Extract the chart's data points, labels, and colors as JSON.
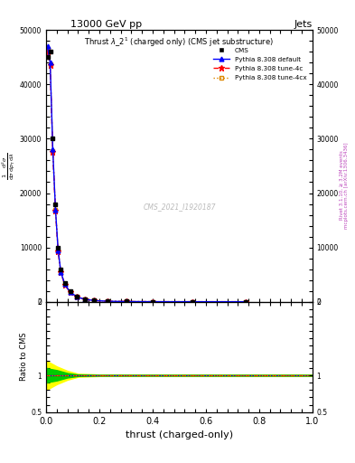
{
  "title_top": "13000 GeV pp",
  "title_right": "Jets",
  "plot_title": "Thrust $\\lambda\\_2^1$ (charged only) (CMS jet substructure)",
  "xlabel": "thrust (charged-only)",
  "watermark": "CMS_2021_I1920187",
  "right_label": "mcplots.cern.ch [arXiv:1306.3436]",
  "right_label2": "Rivet 3.1.10, ≥ 3.2M events",
  "xlim": [
    0.0,
    1.0
  ],
  "ylim_main": [
    0,
    50000
  ],
  "ylim_ratio": [
    0.5,
    2.0
  ],
  "cms_color": "#000000",
  "pythia_default_color": "#0000ff",
  "pythia_4c_color": "#ff0000",
  "pythia_4cx_color": "#dd8800",
  "green_band_color": "#00cc00",
  "yellow_band_color": "#ffff00",
  "thrust_x": [
    0.005,
    0.015,
    0.025,
    0.035,
    0.045,
    0.055,
    0.07,
    0.09,
    0.115,
    0.145,
    0.18,
    0.23,
    0.3,
    0.4,
    0.55,
    0.75
  ],
  "cms_y": [
    45000,
    46000,
    30000,
    18000,
    10000,
    6000,
    3500,
    2000,
    1000,
    500,
    250,
    100,
    40,
    10,
    2,
    0.5
  ],
  "pythia_default_y": [
    47000,
    44000,
    28000,
    17000,
    9500,
    5500,
    3200,
    1800,
    900,
    450,
    220,
    90,
    35,
    9,
    1.8,
    0.4
  ],
  "pythia_4c_y": [
    46000,
    43500,
    27500,
    16800,
    9300,
    5400,
    3100,
    1750,
    880,
    440,
    215,
    88,
    34,
    8.5,
    1.7,
    0.4
  ],
  "pythia_4cx_y": [
    46500,
    43800,
    27800,
    16900,
    9350,
    5450,
    3120,
    1760,
    885,
    442,
    217,
    89,
    34.5,
    8.7,
    1.75,
    0.4
  ],
  "yticks_main": [
    0,
    10000,
    20000,
    30000,
    40000,
    50000
  ],
  "ytick_labels_main": [
    "0",
    "10000",
    "20000",
    "30000",
    "40000",
    "50000"
  ],
  "yticks_ratio": [
    0.5,
    1.0,
    2.0
  ],
  "ytick_labels_ratio": [
    "0.5",
    "1",
    "2"
  ]
}
